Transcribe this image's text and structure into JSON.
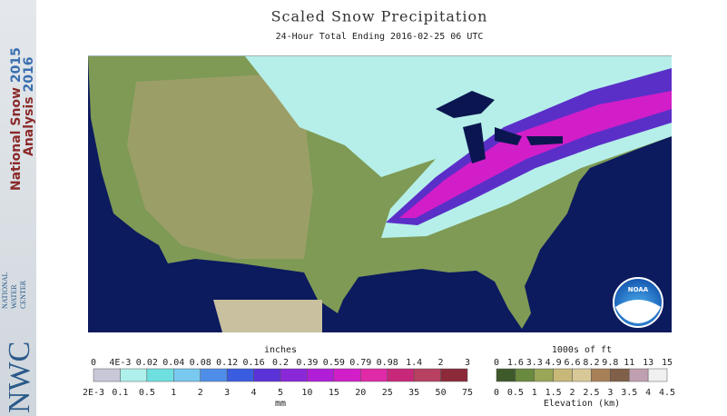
{
  "sidebar": {
    "title_line1": "National Snow",
    "year1": "2015",
    "title_line2": "Analysis",
    "year2": "2016",
    "logo": "NWC",
    "center_name": [
      "NATIONAL",
      "WATER",
      "CENTER"
    ]
  },
  "header": {
    "title": "Scaled Snow Precipitation",
    "subtitle": "24-Hour Total Ending 2016-02-25 06 UTC"
  },
  "map": {
    "logo": "NOAA"
  },
  "snow_legend": {
    "unit_top": "inches",
    "labels_top": [
      "0",
      "4E-3",
      "0.02",
      "0.04",
      "0.08",
      "0.12",
      "0.16",
      "0.2",
      "0.39",
      "0.59",
      "0.79",
      "0.98",
      "1.4",
      "2",
      "3"
    ],
    "labels_bottom": [
      "2E-3",
      "0.1",
      "0.5",
      "1",
      "2",
      "3",
      "4",
      "5",
      "10",
      "15",
      "20",
      "25",
      "35",
      "50",
      "75"
    ],
    "unit_bottom": "mm"
  },
  "elevation_legend": {
    "unit_top": "1000s of ft",
    "labels_top": [
      "0",
      "1.6",
      "3.3",
      "4.9",
      "6.6",
      "8.2",
      "9.8",
      "11",
      "13",
      "15"
    ],
    "labels_bottom": [
      "0",
      "0.5",
      "1",
      "1.5",
      "2",
      "2.5",
      "3",
      "3.5",
      "4",
      "4.5"
    ],
    "unit_bottom": "Elevation (km)"
  }
}
